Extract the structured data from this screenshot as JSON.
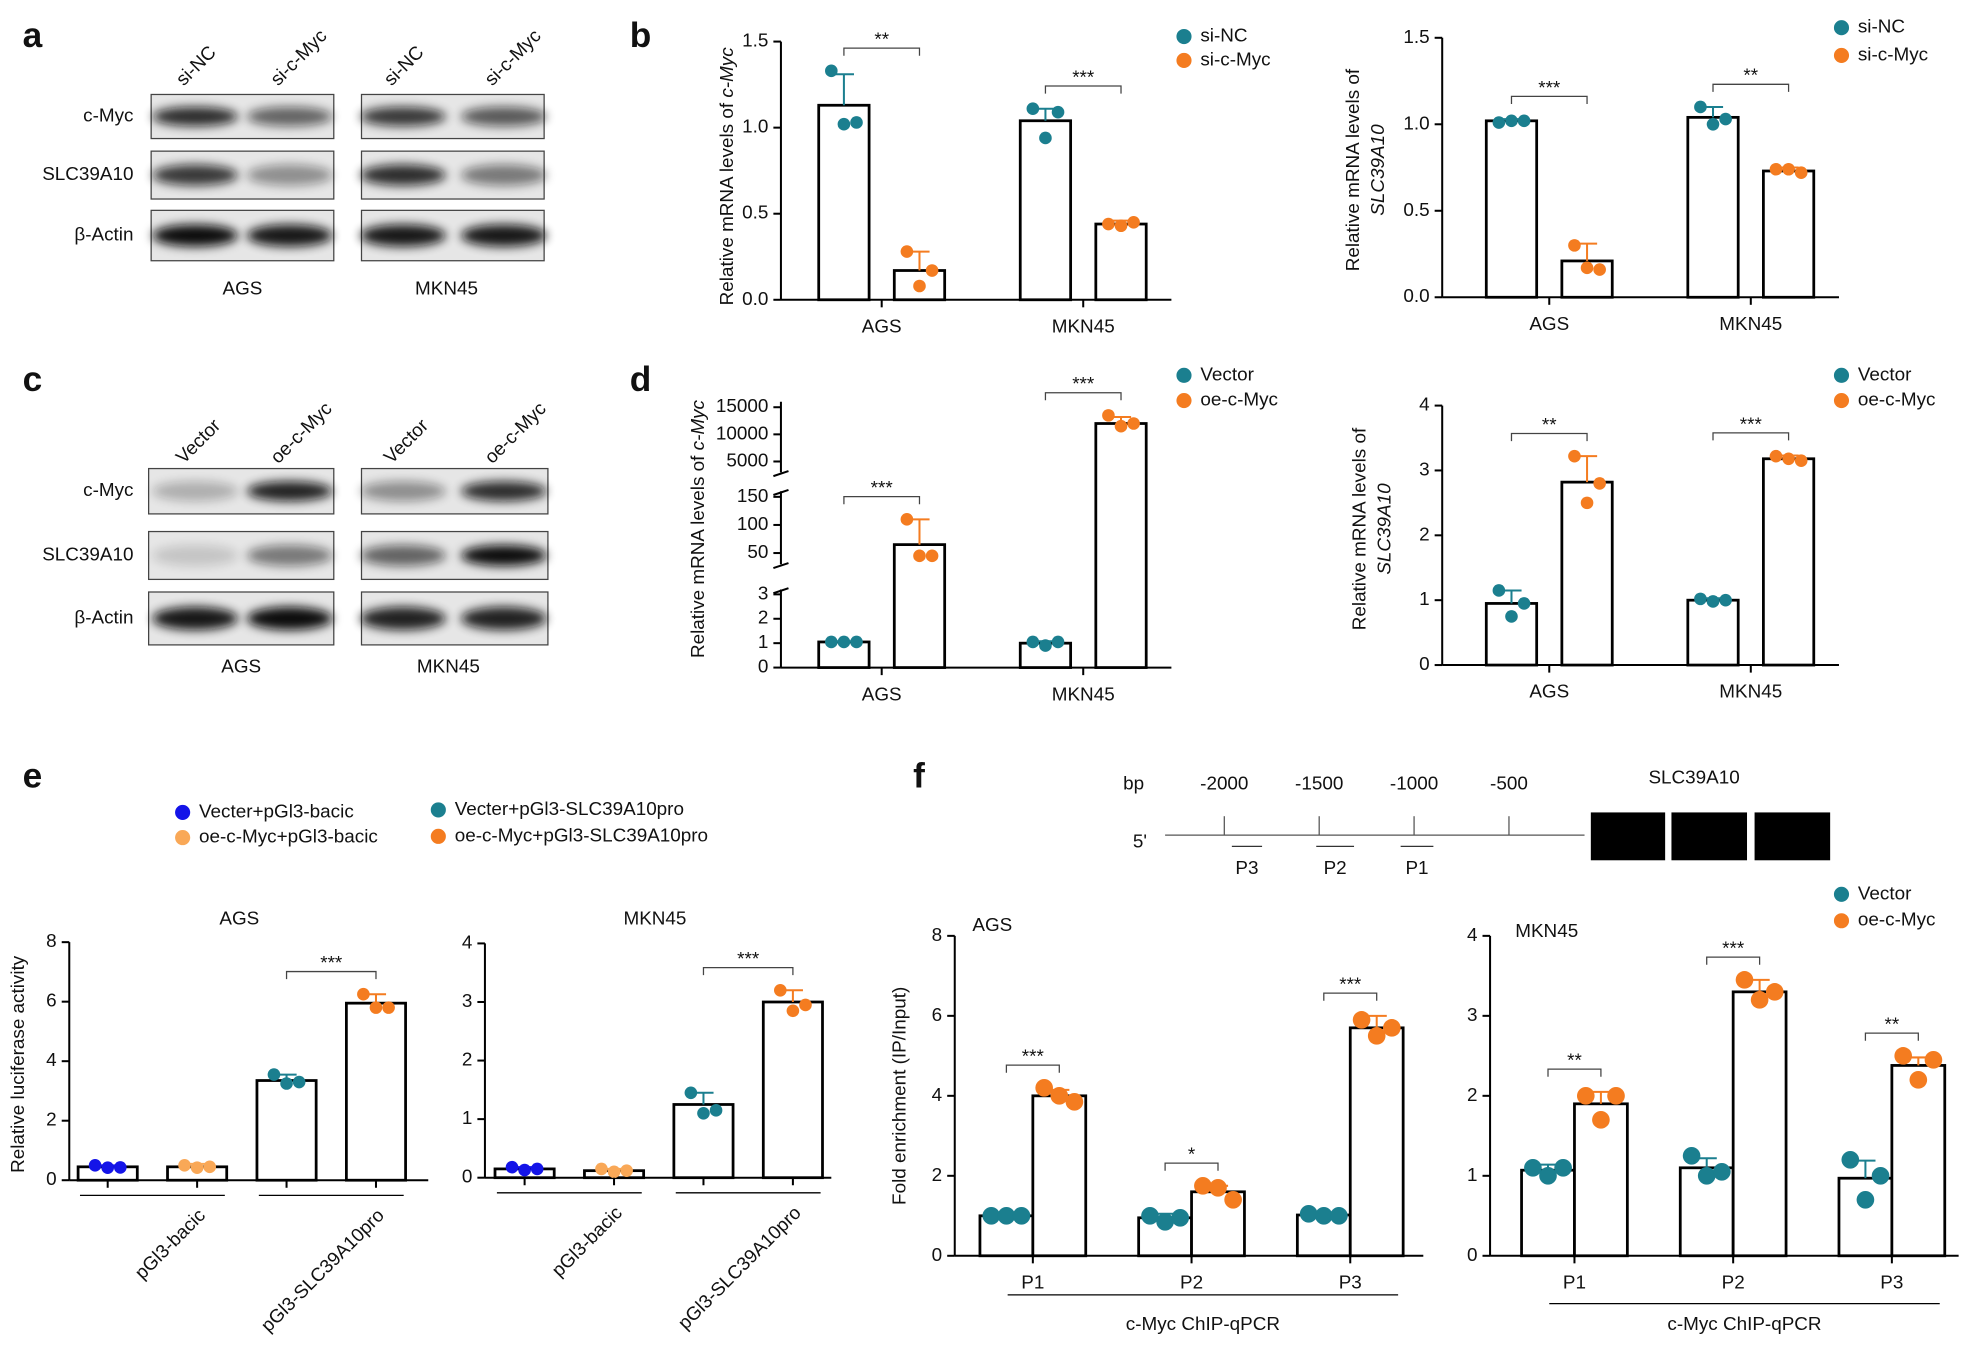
{
  "panel_labels": [
    "a",
    "b",
    "c",
    "d",
    "e",
    "f"
  ],
  "blots": [
    {
      "columns": [
        "si-NC",
        "si-c-Myc",
        "si-NC",
        "si-c-Myc"
      ],
      "rows": [
        "c-Myc",
        "SLC39A10",
        "β-Actin"
      ],
      "cells": [
        "AGS",
        "MKN45"
      ]
    },
    {
      "columns": [
        "Vector",
        "oe-c-Myc",
        "Vector",
        "oe-c-Myc"
      ],
      "rows": [
        "c-Myc",
        "SLC39A10",
        "β-Actin"
      ],
      "cells": [
        "AGS",
        "MKN45"
      ]
    }
  ],
  "promoter": {
    "unit": "bp",
    "ticks": [
      -2000,
      -1500,
      -1000,
      -500
    ],
    "end": "5'",
    "gene": "SLC39A10",
    "primers": [
      "P3",
      "P2",
      "P1"
    ]
  },
  "chart_data": [
    {
      "type": "bar",
      "categories": [
        "AGS",
        "MKN45"
      ],
      "ylabel": [
        "Relative mRNA levels of ",
        "c-Myc"
      ],
      "ylim": [
        0,
        1.5
      ],
      "yticks": [
        {
          "value": 0,
          "label": "0.0"
        },
        0.5,
        {
          "value": 1,
          "label": "1.0"
        },
        1.5
      ],
      "series": [
        {
          "name": "si-NC",
          "color": "#1b7f8f",
          "values": [
            1.13,
            1.04
          ],
          "errors": [
            0.18,
            0.07
          ],
          "points": [
            [
              1.33,
              1.02,
              1.03
            ],
            [
              1.11,
              0.94,
              1.09
            ]
          ]
        },
        {
          "name": "si-c-Myc",
          "color": "#f47c20",
          "values": [
            0.17,
            0.44
          ],
          "errors": [
            0.11,
            0.02
          ],
          "points": [
            [
              0.28,
              0.08,
              0.17
            ],
            [
              0.44,
              0.43,
              0.45
            ]
          ]
        }
      ],
      "significance": [
        "**",
        "***"
      ]
    },
    {
      "type": "bar",
      "categories": [
        "AGS",
        "MKN45"
      ],
      "ylabel": [
        "Relative mRNA levels of",
        "SLC39A10"
      ],
      "ylim": [
        0,
        1.5
      ],
      "yticks": [
        {
          "value": 0,
          "label": "0.0"
        },
        0.5,
        {
          "value": 1,
          "label": "1.0"
        },
        1.5
      ],
      "series": [
        {
          "name": "si-NC",
          "color": "#1b7f8f",
          "values": [
            1.02,
            1.04
          ],
          "errors": [
            0.01,
            0.06
          ],
          "points": [
            [
              1.01,
              1.02,
              1.02
            ],
            [
              1.1,
              1.0,
              1.03
            ]
          ]
        },
        {
          "name": "si-c-Myc",
          "color": "#f47c20",
          "values": [
            0.21,
            0.73
          ],
          "errors": [
            0.1,
            0.02
          ],
          "points": [
            [
              0.3,
              0.17,
              0.16
            ],
            [
              0.74,
              0.74,
              0.72
            ]
          ]
        }
      ],
      "significance": [
        "***",
        "**"
      ]
    },
    {
      "type": "bar",
      "categories": [
        "AGS",
        "MKN45"
      ],
      "ylabel": [
        "Relative mRNA levels of ",
        "c-Myc"
      ],
      "ysegments": [
        {
          "ylim": [
            0,
            3.2
          ],
          "yticks": [
            0,
            1,
            2,
            3
          ]
        },
        {
          "ylim": [
            30,
            160
          ],
          "yticks": [
            50,
            100,
            150
          ]
        },
        {
          "ylim": [
            3000,
            16000
          ],
          "yticks": [
            5000,
            10000,
            15000
          ]
        }
      ],
      "series": [
        {
          "name": "Vector",
          "color": "#1b7f8f",
          "values": [
            1.05,
            1.0
          ],
          "errors": [
            0.03,
            0.08
          ],
          "points": [
            [
              1.05,
              1.05,
              1.05
            ],
            [
              1.05,
              0.9,
              1.05
            ]
          ]
        },
        {
          "name": "oe-c-Myc",
          "color": "#f47c20",
          "values": [
            65,
            12000
          ],
          "errors": [
            45,
            1200
          ],
          "points": [
            [
              110,
              45,
              45
            ],
            [
              13500,
              11500,
              12000
            ]
          ]
        }
      ],
      "significance": [
        "***",
        "***"
      ]
    },
    {
      "type": "bar",
      "categories": [
        "AGS",
        "MKN45"
      ],
      "ylabel": [
        "Relative mRNA levels of",
        "SLC39A10"
      ],
      "ylim": [
        0,
        4
      ],
      "yticks": [
        0,
        1,
        2,
        3,
        4
      ],
      "series": [
        {
          "name": "Vector",
          "color": "#1b7f8f",
          "values": [
            0.95,
            1.0
          ],
          "errors": [
            0.2,
            0.03
          ],
          "points": [
            [
              1.15,
              0.75,
              0.95
            ],
            [
              1.02,
              0.98,
              1.0
            ]
          ]
        },
        {
          "name": "oe-c-Myc",
          "color": "#f47c20",
          "values": [
            2.82,
            3.18
          ],
          "errors": [
            0.4,
            0.05
          ],
          "points": [
            [
              3.22,
              2.5,
              2.8
            ],
            [
              3.22,
              3.18,
              3.15
            ]
          ]
        }
      ],
      "significance": [
        "**",
        "***"
      ]
    },
    {
      "type": "bar",
      "title": "AGS",
      "ylabel": "Relative luciferase activity",
      "ylim": [
        0,
        8
      ],
      "yticks": [
        0,
        2,
        4,
        6,
        8
      ],
      "groups": [
        "pGl3-bacic",
        "pGl3-SLC39A10pro"
      ],
      "significance": [
        null,
        "***"
      ],
      "series": [
        {
          "name": "Vecter+pGl3-bacic",
          "color": "#1414e8",
          "values": [
            0.45
          ],
          "errors": [
            0.05
          ],
          "points": [
            [
              0.5,
              0.42,
              0.43
            ]
          ]
        },
        {
          "name": "oe-c-Myc+pGl3-bacic",
          "color": "#f9a857",
          "values": [
            0.45
          ],
          "errors": [
            0.1
          ],
          "points": [
            [
              0.5,
              0.42,
              0.45
            ]
          ]
        },
        {
          "name": "Vecter+pGl3-SLC39A10pro",
          "color": "#1b7f8f",
          "values": [
            3.35
          ],
          "errors": [
            0.2
          ],
          "points": [
            [
              3.55,
              3.25,
              3.3
            ]
          ]
        },
        {
          "name": "oe-c-Myc+pGl3-SLC39A10pro",
          "color": "#f47c20",
          "values": [
            5.95
          ],
          "errors": [
            0.3
          ],
          "points": [
            [
              6.25,
              5.8,
              5.8
            ]
          ]
        }
      ]
    },
    {
      "type": "bar",
      "title": "MKN45",
      "ylim": [
        0,
        4
      ],
      "yticks": [
        0,
        1,
        2,
        3,
        4
      ],
      "groups": [
        "pGl3-bacic",
        "pGl3-SLC39A10pro"
      ],
      "significance": [
        null,
        "***"
      ],
      "series": [
        {
          "color": "#1414e8",
          "values": [
            0.15
          ],
          "errors": [
            0.03
          ],
          "points": [
            [
              0.18,
              0.13,
              0.15
            ]
          ]
        },
        {
          "color": "#f9a857",
          "values": [
            0.12
          ],
          "errors": [
            0.03
          ],
          "points": [
            [
              0.15,
              0.1,
              0.12
            ]
          ]
        },
        {
          "color": "#1b7f8f",
          "values": [
            1.25
          ],
          "errors": [
            0.2
          ],
          "points": [
            [
              1.45,
              1.1,
              1.15
            ]
          ]
        },
        {
          "color": "#f47c20",
          "values": [
            3.0
          ],
          "errors": [
            0.2
          ],
          "points": [
            [
              3.2,
              2.85,
              2.95
            ]
          ]
        }
      ]
    },
    {
      "type": "bar",
      "title": "AGS",
      "categories": [
        "P1",
        "P2",
        "P3"
      ],
      "ylabel": "Fold enrichment (IP/Input)",
      "xlabel": "c-Myc ChIP-qPCR",
      "ylim": [
        0,
        8
      ],
      "yticks": [
        0,
        2,
        4,
        6,
        8
      ],
      "series": [
        {
          "color": "#1b7f8f",
          "values": [
            1.0,
            0.95,
            1.02
          ],
          "errors": [
            0.02,
            0.1,
            0.02
          ],
          "points": [
            [
              1.0,
              1.0,
              1.0
            ],
            [
              1.0,
              0.85,
              0.95
            ],
            [
              1.05,
              1.0,
              1.0
            ]
          ]
        },
        {
          "color": "#f47c20",
          "values": [
            4.0,
            1.6,
            5.7
          ],
          "errors": [
            0.15,
            0.15,
            0.3
          ],
          "points": [
            [
              4.2,
              4.0,
              3.85
            ],
            [
              1.75,
              1.7,
              1.4
            ],
            [
              5.9,
              5.5,
              5.7
            ]
          ]
        }
      ],
      "significance": [
        "***",
        "*",
        "***"
      ]
    },
    {
      "type": "bar",
      "title": "MKN45",
      "categories": [
        "P1",
        "P2",
        "P3"
      ],
      "xlabel": "c-Myc ChIP-qPCR",
      "ylim": [
        0,
        4
      ],
      "yticks": [
        0,
        1,
        2,
        3,
        4
      ],
      "series": [
        {
          "name": "Vector",
          "color": "#1b7f8f",
          "values": [
            1.07,
            1.1,
            0.97
          ],
          "errors": [
            0.07,
            0.12,
            0.22
          ],
          "points": [
            [
              1.1,
              1.0,
              1.1
            ],
            [
              1.25,
              1.0,
              1.05
            ],
            [
              1.2,
              0.7,
              1.0
            ]
          ]
        },
        {
          "name": "oe-c-Myc",
          "color": "#f47c20",
          "values": [
            1.9,
            3.3,
            2.38
          ],
          "errors": [
            0.15,
            0.15,
            0.1
          ],
          "points": [
            [
              2.0,
              1.7,
              2.0
            ],
            [
              3.45,
              3.2,
              3.3
            ],
            [
              2.5,
              2.2,
              2.45
            ]
          ]
        }
      ],
      "significance": [
        "**",
        "***",
        "**"
      ]
    }
  ]
}
